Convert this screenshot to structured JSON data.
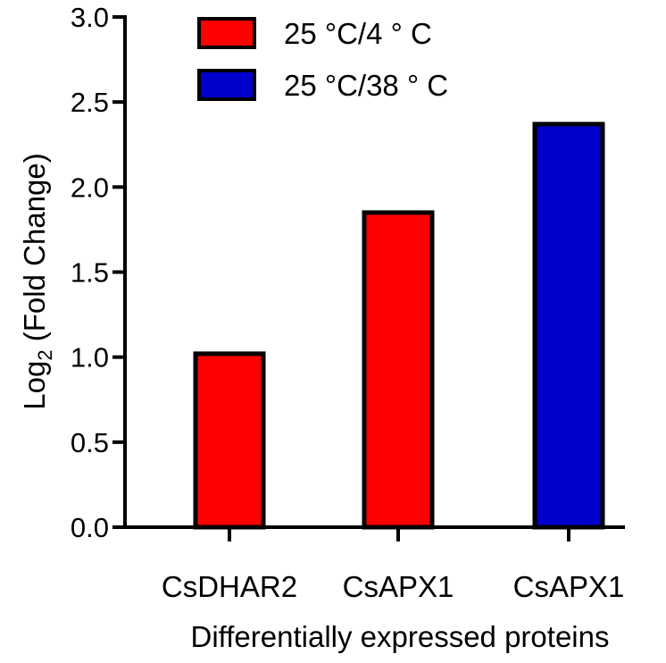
{
  "chart_data": {
    "type": "bar",
    "categories": [
      "CsDHAR2",
      "CsAPX1",
      "CsAPX1"
    ],
    "series": [
      {
        "name": "25 °C/4 ° C",
        "color": "#ff0000",
        "values": [
          1.02,
          1.85,
          null
        ]
      },
      {
        "name": "25 °C/38 ° C",
        "color": "#0000cc",
        "values": [
          null,
          null,
          2.37
        ]
      }
    ],
    "xlabel": "Differentially expressed proteins",
    "ylabel": {
      "prefix": "Log",
      "subscript": "2",
      "suffix": " (Fold Change)"
    },
    "ylim": [
      0,
      3.0
    ],
    "yticks": [
      "0.0",
      "0.5",
      "1.0",
      "1.5",
      "2.0",
      "2.5",
      "3.0"
    ],
    "grid": false,
    "legend_position": "top"
  }
}
